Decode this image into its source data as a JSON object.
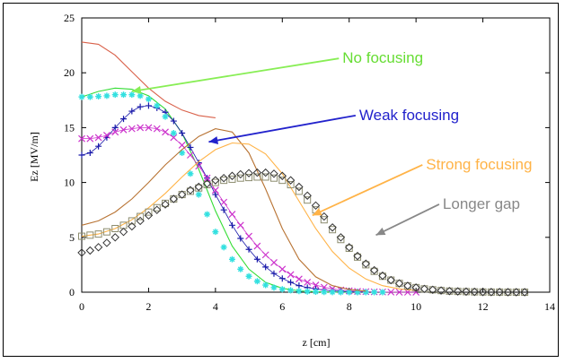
{
  "chart_data": {
    "type": "line",
    "title": "",
    "xlabel": "z [cm]",
    "ylabel": "Ez [MV/m]",
    "xlim": [
      0,
      14
    ],
    "ylim": [
      0,
      25
    ],
    "xticks": [
      0,
      2,
      4,
      6,
      8,
      10,
      12,
      14
    ],
    "yticks": [
      0,
      5,
      10,
      15,
      20,
      25
    ],
    "grid": false,
    "series": [
      {
        "color": "#d9614a",
        "marker": "none",
        "x": [
          0,
          0.5,
          1.0,
          1.5,
          2.0,
          2.5,
          3.0,
          3.5,
          4.0
        ],
        "y": [
          22.8,
          22.6,
          21.6,
          20.1,
          18.6,
          17.4,
          16.6,
          16.1,
          15.9
        ]
      },
      {
        "color": "#33dd33",
        "marker": "none",
        "x": [
          0,
          0.5,
          1.0,
          1.5,
          2.0,
          2.5,
          3.0,
          3.5,
          4.0,
          4.5,
          5.0,
          5.5,
          6.0,
          6.5,
          7.0,
          7.5,
          8.0
        ],
        "y": [
          17.8,
          18.3,
          18.6,
          18.5,
          17.9,
          16.7,
          14.5,
          11.2,
          7.4,
          4.2,
          2.1,
          0.9,
          0.35,
          0.12,
          0.05,
          0.02,
          0
        ]
      },
      {
        "color": "#1a1aaa",
        "marker": "plus",
        "x": [
          0,
          0.25,
          0.5,
          0.75,
          1.0,
          1.25,
          1.5,
          1.75,
          2.0,
          2.25,
          2.5,
          2.75,
          3.0,
          3.25,
          3.5,
          3.75,
          4.0,
          4.25,
          4.5,
          4.75,
          5.0,
          5.25,
          5.5,
          5.75,
          6.0,
          6.25,
          6.5,
          6.75,
          7.0,
          7.25,
          7.5,
          7.75,
          8.0,
          8.25,
          8.5
        ],
        "y": [
          12.5,
          12.7,
          13.3,
          14.1,
          15.0,
          15.8,
          16.5,
          16.9,
          17.0,
          16.8,
          16.4,
          15.6,
          14.5,
          13.2,
          11.8,
          10.4,
          8.9,
          7.5,
          6.1,
          4.9,
          3.9,
          3.0,
          2.3,
          1.7,
          1.25,
          0.9,
          0.6,
          0.42,
          0.3,
          0.2,
          0.13,
          0.08,
          0.05,
          0.03,
          0.02
        ]
      },
      {
        "color": "#cc33cc",
        "marker": "x",
        "x": [
          0,
          0.25,
          0.5,
          0.75,
          1.0,
          1.25,
          1.5,
          1.75,
          2.0,
          2.25,
          2.5,
          2.75,
          3.0,
          3.25,
          3.5,
          3.75,
          4.0,
          4.25,
          4.5,
          4.75,
          5.0,
          5.25,
          5.5,
          5.75,
          6.0,
          6.25,
          6.5,
          6.75,
          7.0,
          7.25,
          7.5,
          7.75,
          8.0,
          8.25,
          8.5,
          8.75,
          9.0,
          9.25,
          9.5,
          9.75,
          10.0
        ],
        "y": [
          14.0,
          14.0,
          14.1,
          14.3,
          14.6,
          14.8,
          14.9,
          15.0,
          15.0,
          14.9,
          14.6,
          14.1,
          13.4,
          12.5,
          11.5,
          10.4,
          9.3,
          8.2,
          7.1,
          6.1,
          5.1,
          4.2,
          3.4,
          2.7,
          2.1,
          1.6,
          1.2,
          0.9,
          0.65,
          0.45,
          0.3,
          0.2,
          0.13,
          0.08,
          0.05,
          0.03,
          0.02,
          0.01,
          0,
          0,
          0
        ]
      },
      {
        "color": "#33e0e0",
        "marker": "asterisk",
        "x": [
          0,
          0.25,
          0.5,
          0.75,
          1.0,
          1.25,
          1.5,
          1.75,
          2.0,
          2.25,
          2.5,
          2.75,
          3.0,
          3.25,
          3.5,
          3.75,
          4.0,
          4.25,
          4.5,
          4.75,
          5.0,
          5.25,
          5.5,
          5.75,
          6.0,
          6.25,
          6.5,
          6.75,
          7.0,
          7.25,
          7.5,
          7.75,
          8.0,
          8.25,
          8.5,
          8.75,
          9.0
        ],
        "y": [
          17.8,
          17.8,
          17.85,
          17.9,
          18.0,
          18.0,
          18.0,
          17.9,
          17.6,
          17.0,
          16.0,
          14.5,
          12.7,
          10.8,
          8.9,
          7.1,
          5.5,
          4.1,
          3.0,
          2.1,
          1.45,
          1.0,
          0.65,
          0.42,
          0.27,
          0.17,
          0.1,
          0.06,
          0.04,
          0.02,
          0.01,
          0,
          0,
          0,
          0,
          0,
          0
        ]
      },
      {
        "color": "#b87333",
        "marker": "none",
        "x": [
          0,
          0.5,
          1.0,
          1.5,
          2.0,
          2.5,
          3.0,
          3.5,
          4.0,
          4.5,
          5.0,
          5.5,
          6.0,
          6.5,
          7.0,
          7.5,
          8.0,
          8.5
        ],
        "y": [
          6.1,
          6.5,
          7.3,
          8.5,
          10.0,
          11.6,
          13.0,
          14.2,
          14.9,
          14.6,
          12.7,
          9.4,
          5.8,
          3.0,
          1.4,
          0.6,
          0.25,
          0.1
        ]
      },
      {
        "color": "#ffb347",
        "marker": "none",
        "x": [
          0,
          0.5,
          1.0,
          1.5,
          2.0,
          2.5,
          3.0,
          3.5,
          4.0,
          4.5,
          5.0,
          5.5,
          6.0,
          6.5,
          7.0,
          7.5,
          8.0,
          8.5,
          9.0,
          9.5,
          10.0
        ],
        "y": [
          5.1,
          5.3,
          5.8,
          6.6,
          7.7,
          9.0,
          10.5,
          11.9,
          13.0,
          13.6,
          13.5,
          12.6,
          10.8,
          8.3,
          5.8,
          3.7,
          2.2,
          1.2,
          0.6,
          0.3,
          0.15
        ]
      },
      {
        "color": "#8c8c6e",
        "marker": "square",
        "x": [
          0,
          0.25,
          0.5,
          0.75,
          1.0,
          1.25,
          1.5,
          1.75,
          2.0,
          2.25,
          2.5,
          2.75,
          3.0,
          3.25,
          3.5,
          3.75,
          4.0,
          4.25,
          4.5,
          4.75,
          5.0,
          5.25,
          5.5,
          5.75,
          6.0,
          6.25,
          6.5,
          6.75,
          7.0,
          7.25,
          7.5,
          7.75,
          8.0,
          8.25,
          8.5,
          8.75,
          9.0,
          9.25,
          9.5,
          9.75,
          10.0,
          10.25,
          10.5,
          10.75,
          11.0,
          11.25,
          11.5,
          11.75,
          12.0,
          12.25,
          12.5,
          12.75,
          13.0,
          13.25
        ],
        "y": [
          5.1,
          5.2,
          5.3,
          5.5,
          5.8,
          6.1,
          6.5,
          6.9,
          7.3,
          7.7,
          8.1,
          8.5,
          8.9,
          9.2,
          9.5,
          9.8,
          10.0,
          10.2,
          10.3,
          10.4,
          10.45,
          10.5,
          10.5,
          10.4,
          10.2,
          9.8,
          9.2,
          8.4,
          7.5,
          6.6,
          5.7,
          4.8,
          4.0,
          3.2,
          2.5,
          1.9,
          1.45,
          1.1,
          0.8,
          0.58,
          0.42,
          0.3,
          0.22,
          0.15,
          0.1,
          0.07,
          0.05,
          0.03,
          0.02,
          0.01,
          0.01,
          0,
          0,
          0
        ]
      },
      {
        "color": "#333333",
        "marker": "diamond",
        "x": [
          0,
          0.25,
          0.5,
          0.75,
          1.0,
          1.25,
          1.5,
          1.75,
          2.0,
          2.25,
          2.5,
          2.75,
          3.0,
          3.25,
          3.5,
          3.75,
          4.0,
          4.25,
          4.5,
          4.75,
          5.0,
          5.25,
          5.5,
          5.75,
          6.0,
          6.25,
          6.5,
          6.75,
          7.0,
          7.25,
          7.5,
          7.75,
          8.0,
          8.25,
          8.5,
          8.75,
          9.0,
          9.25,
          9.5,
          9.75,
          10.0,
          10.25,
          10.5,
          10.75,
          11.0,
          11.25,
          11.5,
          11.75,
          12.0,
          12.25,
          12.5,
          12.75,
          13.0,
          13.25
        ],
        "y": [
          3.6,
          3.8,
          4.1,
          4.5,
          5.0,
          5.5,
          6.0,
          6.5,
          7.0,
          7.5,
          8.0,
          8.5,
          8.9,
          9.3,
          9.6,
          9.9,
          10.2,
          10.4,
          10.6,
          10.75,
          10.85,
          10.9,
          10.9,
          10.8,
          10.6,
          10.2,
          9.6,
          8.8,
          7.9,
          6.9,
          5.9,
          5.0,
          4.1,
          3.3,
          2.6,
          2.0,
          1.5,
          1.1,
          0.8,
          0.58,
          0.42,
          0.3,
          0.22,
          0.15,
          0.1,
          0.07,
          0.05,
          0.03,
          0.02,
          0.01,
          0.01,
          0,
          0,
          0
        ]
      }
    ],
    "annotations": [
      {
        "text": "No focusing",
        "color": "#66dd33",
        "arrow_color": "#88ee55",
        "tx": 7.8,
        "ty": 20.9,
        "ax": 1.5,
        "ay": 18.3
      },
      {
        "text": "Weak focusing",
        "color": "#2222cc",
        "arrow_color": "#2222cc",
        "tx": 8.3,
        "ty": 15.7,
        "ax": 3.8,
        "ay": 13.7
      },
      {
        "text": "Strong focusing",
        "color": "#ffb347",
        "arrow_color": "#ffb347",
        "tx": 10.3,
        "ty": 11.2,
        "ax": 6.9,
        "ay": 7.0
      },
      {
        "text": "Longer gap",
        "color": "#888888",
        "arrow_color": "#888888",
        "tx": 10.8,
        "ty": 7.6,
        "ax": 8.8,
        "ay": 5.2
      }
    ]
  }
}
